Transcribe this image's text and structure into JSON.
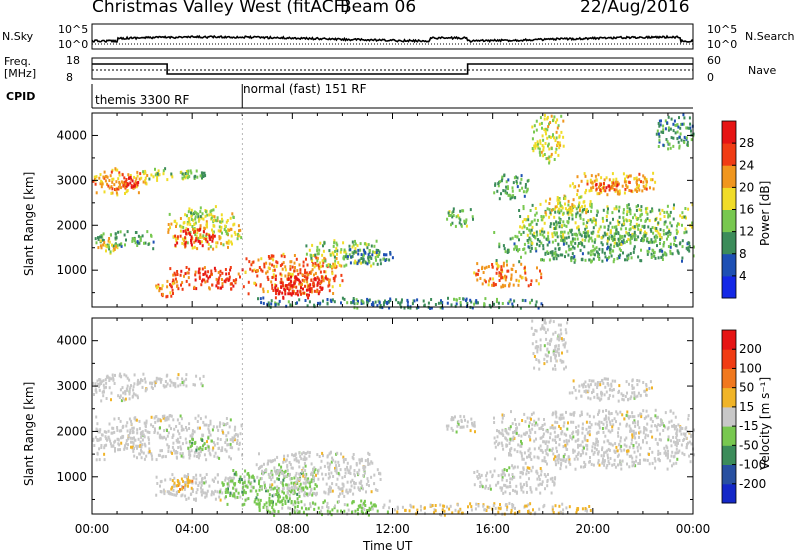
{
  "header": {
    "station": "Christmas Valley West (fitACF)",
    "beam": "Beam 06",
    "date": "22/Aug/2016"
  },
  "top_panels": {
    "nsky_label": "N.Sky",
    "nsky_ticks": [
      "10^5",
      "10^0"
    ],
    "nsearch_label": "N.Search",
    "nsearch_ticks": [
      "10^5",
      "10^0"
    ],
    "freq_label_1": "Freq.",
    "freq_label_2": "[MHz]",
    "freq_ticks": [
      "18",
      "8"
    ],
    "nave_label": "Nave",
    "nave_ticks": [
      "60",
      "0"
    ],
    "cpid_label": "CPID",
    "cpid_segments": [
      {
        "label": "themis 3300 RF",
        "start_hour": 0,
        "end_hour": 6
      },
      {
        "label": "normal (fast) 151 RF",
        "start_hour": 6,
        "end_hour": 24
      }
    ]
  },
  "chart_data": [
    {
      "type": "heatmap",
      "title": "",
      "xlabel": "",
      "ylabel": "Slant Range [km]",
      "x_unit": "hours UT",
      "xlim": [
        0,
        24
      ],
      "ylim": [
        180,
        4500
      ],
      "y_ticks": [
        1000,
        2000,
        3000,
        4000
      ],
      "colorbar": {
        "label": "Power [dB]",
        "ticks": [
          "28",
          "24",
          "20",
          "16",
          "12",
          "8",
          "4"
        ],
        "range": [
          0,
          30
        ],
        "colors": [
          "#1428e6",
          "#1e50b4",
          "#3c8c5a",
          "#78c850",
          "#f0dc28",
          "#f0961e",
          "#f03c14",
          "#e61414"
        ]
      },
      "regions": [
        {
          "x": [
            0.0,
            2.2
          ],
          "y": [
            2700,
            3300
          ],
          "value": 20
        },
        {
          "x": [
            1.0,
            2.0
          ],
          "y": [
            2850,
            3100
          ],
          "value": 26
        },
        {
          "x": [
            2.0,
            3.8
          ],
          "y": [
            3000,
            3300
          ],
          "value": 14
        },
        {
          "x": [
            3.5,
            4.5
          ],
          "y": [
            3050,
            3250
          ],
          "value": 12
        },
        {
          "x": [
            0.0,
            2.5
          ],
          "y": [
            1500,
            1900
          ],
          "value": 11
        },
        {
          "x": [
            0.2,
            1.0
          ],
          "y": [
            1400,
            1750
          ],
          "value": 18
        },
        {
          "x": [
            3.0,
            6.0
          ],
          "y": [
            1500,
            2300
          ],
          "value": 17
        },
        {
          "x": [
            3.2,
            5.0
          ],
          "y": [
            1550,
            1950
          ],
          "value": 27
        },
        {
          "x": [
            3.5,
            5.0
          ],
          "y": [
            2100,
            2450
          ],
          "value": 14
        },
        {
          "x": [
            3.0,
            6.0
          ],
          "y": [
            600,
            1100
          ],
          "value": 24
        },
        {
          "x": [
            2.5,
            3.5
          ],
          "y": [
            400,
            800
          ],
          "value": 21
        },
        {
          "x": [
            6.0,
            10.0
          ],
          "y": [
            500,
            1400
          ],
          "value": 22
        },
        {
          "x": [
            7.0,
            9.5
          ],
          "y": [
            400,
            900
          ],
          "value": 28
        },
        {
          "x": [
            8.5,
            11.5
          ],
          "y": [
            1100,
            1700
          ],
          "value": 14
        },
        {
          "x": [
            10.0,
            12.0
          ],
          "y": [
            1150,
            1500
          ],
          "value": 8
        },
        {
          "x": [
            6.5,
            18.0
          ],
          "y": [
            180,
            420
          ],
          "value": 9
        },
        {
          "x": [
            14.0,
            15.2
          ],
          "y": [
            2000,
            2400
          ],
          "value": 12
        },
        {
          "x": [
            15.2,
            18.0
          ],
          "y": [
            650,
            1200
          ],
          "value": 21
        },
        {
          "x": [
            16.0,
            24.0
          ],
          "y": [
            1200,
            1900
          ],
          "value": 11
        },
        {
          "x": [
            17.0,
            24.0
          ],
          "y": [
            1600,
            2500
          ],
          "value": 13
        },
        {
          "x": [
            18.0,
            20.0
          ],
          "y": [
            2300,
            2700
          ],
          "value": 17
        },
        {
          "x": [
            19.0,
            22.5
          ],
          "y": [
            2700,
            3200
          ],
          "value": 19
        },
        {
          "x": [
            20.0,
            21.0
          ],
          "y": [
            2800,
            3000
          ],
          "value": 24
        },
        {
          "x": [
            17.5,
            18.8
          ],
          "y": [
            3400,
            4500
          ],
          "value": 16
        },
        {
          "x": [
            16.0,
            17.5
          ],
          "y": [
            2600,
            3200
          ],
          "value": 11
        },
        {
          "x": [
            22.5,
            24.0
          ],
          "y": [
            3700,
            4500
          ],
          "value": 10
        }
      ]
    },
    {
      "type": "heatmap",
      "title": "",
      "xlabel": "Time UT",
      "ylabel": "Slant Range [km]",
      "x_unit": "hours UT",
      "xlim": [
        0,
        24
      ],
      "ylim": [
        180,
        4500
      ],
      "x_ticks": [
        "00:00",
        "04:00",
        "08:00",
        "12:00",
        "16:00",
        "20:00",
        "00:00"
      ],
      "y_ticks": [
        1000,
        2000,
        3000,
        4000
      ],
      "colorbar": {
        "label": "Velocity [m s⁻¹]",
        "ticks": [
          "200",
          "100",
          "50",
          "15",
          "-15",
          "-50",
          "-100",
          "-200"
        ],
        "range": [
          -250,
          250
        ],
        "colors": [
          "#1428c8",
          "#2850a0",
          "#3c8c5a",
          "#78c850",
          "#c8c8c8",
          "#f0b428",
          "#f0781e",
          "#f03c14",
          "#e61414"
        ]
      },
      "regions": [
        {
          "x": [
            0.0,
            2.5
          ],
          "y": [
            2700,
            3300
          ],
          "value": 0
        },
        {
          "x": [
            2.0,
            4.5
          ],
          "y": [
            3000,
            3300
          ],
          "value": 0
        },
        {
          "x": [
            0.0,
            6.0
          ],
          "y": [
            1400,
            2400
          ],
          "value": 0
        },
        {
          "x": [
            3.8,
            4.8
          ],
          "y": [
            1600,
            1900
          ],
          "value": -60
        },
        {
          "x": [
            2.5,
            6.5
          ],
          "y": [
            500,
            1100
          ],
          "value": 0
        },
        {
          "x": [
            3.0,
            4.0
          ],
          "y": [
            700,
            1000
          ],
          "value": 60
        },
        {
          "x": [
            5.0,
            9.0
          ],
          "y": [
            400,
            1200
          ],
          "value": -60
        },
        {
          "x": [
            6.5,
            11.5
          ],
          "y": [
            600,
            1600
          ],
          "value": 0
        },
        {
          "x": [
            6.5,
            12.0
          ],
          "y": [
            180,
            500
          ],
          "value": -40
        },
        {
          "x": [
            12.0,
            20.0
          ],
          "y": [
            180,
            450
          ],
          "value": 35
        },
        {
          "x": [
            14.0,
            15.3
          ],
          "y": [
            2000,
            2400
          ],
          "value": 0
        },
        {
          "x": [
            15.2,
            18.5
          ],
          "y": [
            650,
            1250
          ],
          "value": 0
        },
        {
          "x": [
            16.0,
            24.0
          ],
          "y": [
            1200,
            2500
          ],
          "value": 0
        },
        {
          "x": [
            19.0,
            22.5
          ],
          "y": [
            2700,
            3200
          ],
          "value": 0
        },
        {
          "x": [
            17.5,
            19.0
          ],
          "y": [
            3400,
            4500
          ],
          "value": 0
        }
      ]
    }
  ]
}
